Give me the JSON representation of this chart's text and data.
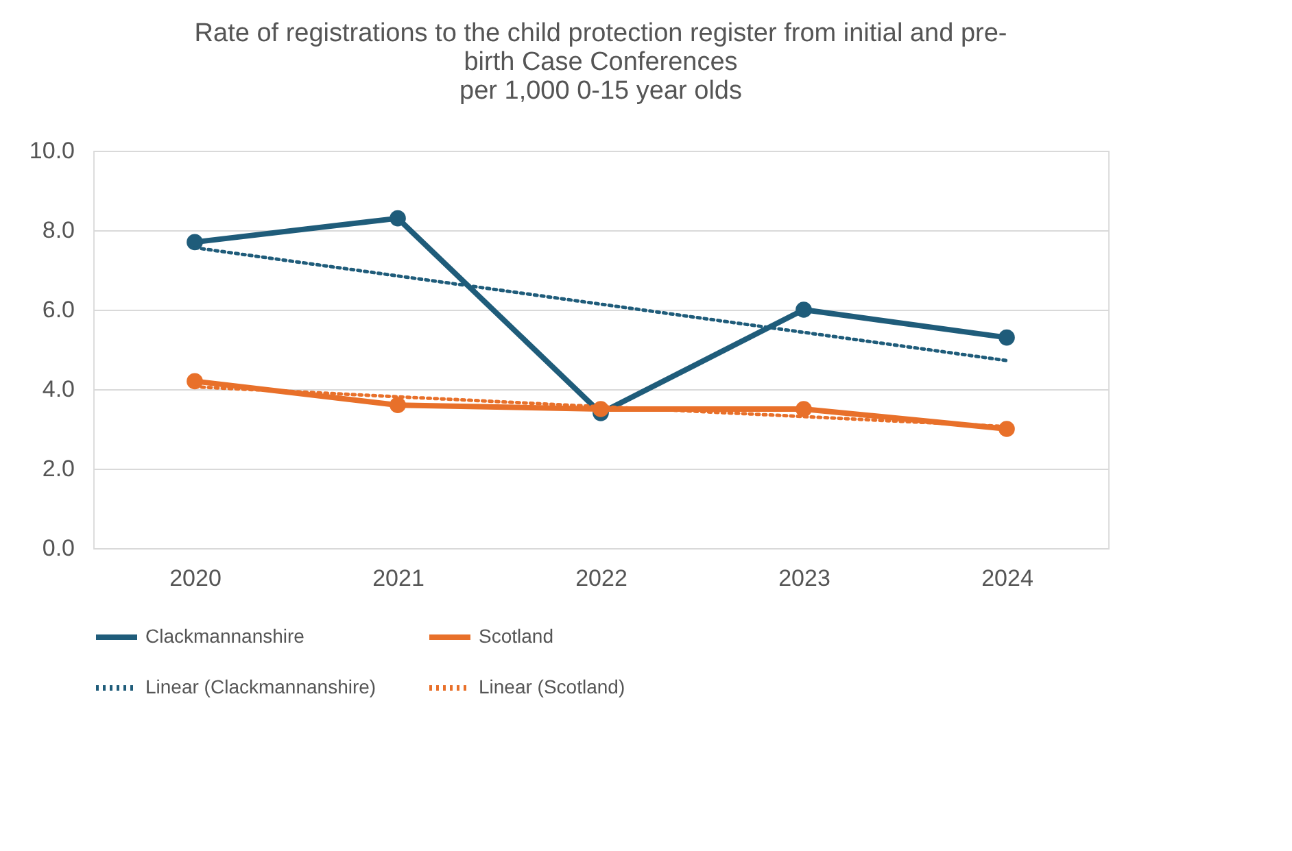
{
  "chart_data": {
    "type": "line",
    "title": [
      "Rate of registrations to the child protection register from initial and pre-",
      "birth Case Conferences",
      "per 1,000 0-15 year olds"
    ],
    "categories": [
      "2020",
      "2021",
      "2022",
      "2023",
      "2024"
    ],
    "series": [
      {
        "name": "Clackmannanshire",
        "color": "#1f5c7a",
        "values": [
          7.7,
          8.3,
          3.4,
          6.0,
          5.3
        ],
        "marker": "circle",
        "line_style": "solid"
      },
      {
        "name": "Scotland",
        "color": "#e8702a",
        "values": [
          4.2,
          3.6,
          3.5,
          3.5,
          3.0
        ],
        "marker": "circle",
        "line_style": "solid"
      },
      {
        "name": "Linear (Clackmannanshire)",
        "color": "#1f5c7a",
        "values": [
          7.56,
          6.85,
          6.14,
          5.43,
          4.72
        ],
        "marker": "none",
        "line_style": "dotted"
      },
      {
        "name": "Linear (Scotland)",
        "color": "#e8702a",
        "values": [
          4.06,
          3.81,
          3.56,
          3.31,
          3.06
        ],
        "marker": "none",
        "line_style": "dotted"
      }
    ],
    "ylim": [
      0,
      10
    ],
    "yticks": [
      {
        "value": 0,
        "label": "0.0"
      },
      {
        "value": 2,
        "label": "2.0"
      },
      {
        "value": 4,
        "label": "4.0"
      },
      {
        "value": 6,
        "label": "6.0"
      },
      {
        "value": 8,
        "label": "8.0"
      },
      {
        "value": 10,
        "label": "10.0"
      }
    ],
    "grid": "y",
    "legend": "bottom"
  }
}
